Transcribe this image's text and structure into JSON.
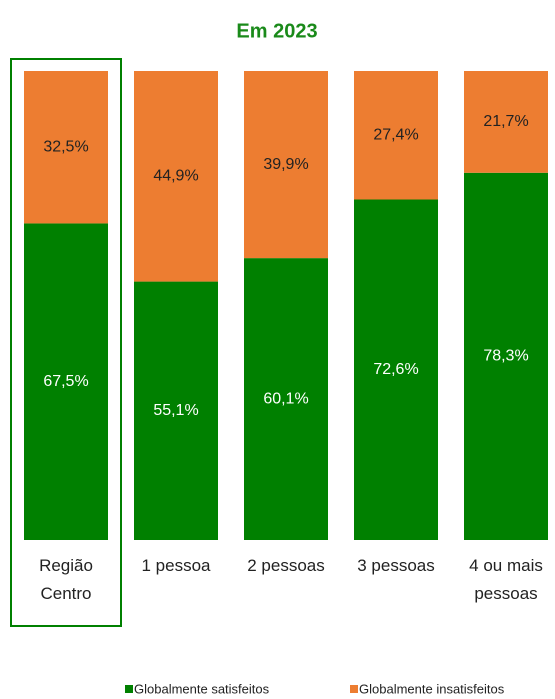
{
  "chart_data": {
    "type": "stacked_bar",
    "title": "Em 2023",
    "categories": [
      "Região Centro",
      "1 pessoa",
      "2 pessoas",
      "3 pessoas",
      "4 ou mais pessoas"
    ],
    "series": [
      {
        "name": "Globalmente satisfeitos",
        "color": "#008000",
        "values": [
          67.5,
          55.1,
          60.1,
          72.6,
          78.3
        ],
        "value_labels": [
          "67,5%",
          "55,1%",
          "60,1%",
          "72,6%",
          "78,3%"
        ]
      },
      {
        "name": "Globalmente insatisfeitos",
        "color": "#ed7d31",
        "values": [
          32.5,
          44.9,
          39.9,
          27.4,
          21.7
        ],
        "value_labels": [
          "32,5%",
          "44,9%",
          "39,9%",
          "27,4%",
          "21,7%"
        ]
      }
    ],
    "ylim": [
      0,
      100
    ],
    "highlight_color": "#008000"
  }
}
